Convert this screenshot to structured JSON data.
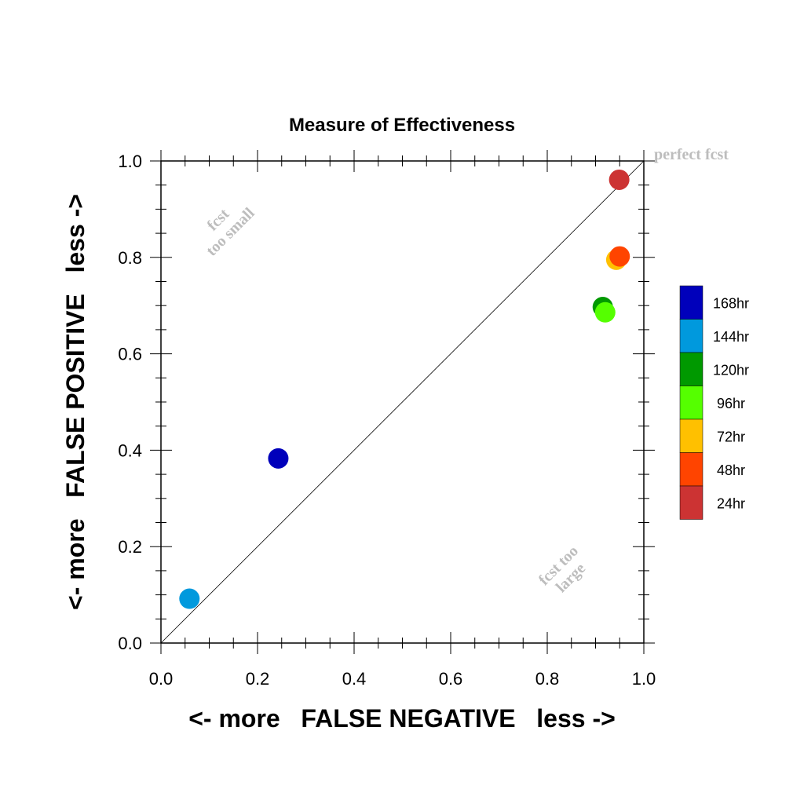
{
  "chart_data": {
    "type": "scatter",
    "title": "Measure of Effectiveness",
    "xlabel": "<- more   FALSE NEGATIVE   less ->",
    "ylabel": "<- more   FALSE POSITIVE   less ->",
    "xlim": [
      0,
      1
    ],
    "ylim": [
      0,
      1
    ],
    "xticks": [
      "0.0",
      "0.2",
      "0.4",
      "0.6",
      "0.8",
      "1.0"
    ],
    "yticks": [
      "0.0",
      "0.2",
      "0.4",
      "0.6",
      "0.8",
      "1.0"
    ],
    "grid": false,
    "legend_placement": "right",
    "series": [
      {
        "name": "168hr",
        "color": "#0000bb",
        "x": 0.243,
        "y": 0.383
      },
      {
        "name": "144hr",
        "color": "#0099dd",
        "x": 0.059,
        "y": 0.092
      },
      {
        "name": "120hr",
        "color": "#009900",
        "x": 0.915,
        "y": 0.697
      },
      {
        "name": "96hr",
        "color": "#55ff00",
        "x": 0.92,
        "y": 0.686
      },
      {
        "name": "72hr",
        "color": "#ffc000",
        "x": 0.943,
        "y": 0.795
      },
      {
        "name": "48hr",
        "color": "#ff4400",
        "x": 0.95,
        "y": 0.802
      },
      {
        "name": "24hr",
        "color": "#cc3333",
        "x": 0.949,
        "y": 0.961
      }
    ],
    "annotations": {
      "perfect": "perfect fcst",
      "too_small": [
        "fcst",
        "too small"
      ],
      "too_large": [
        "fcst too",
        "large"
      ]
    }
  }
}
